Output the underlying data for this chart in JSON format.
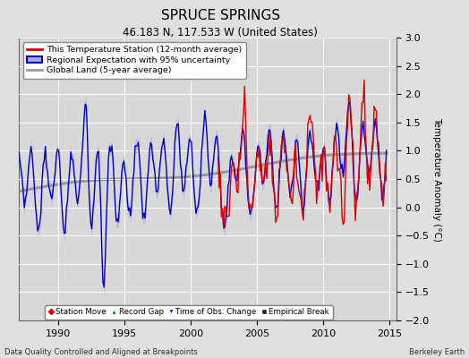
{
  "title": "SPRUCE SPRINGS",
  "subtitle": "46.183 N, 117.533 W (United States)",
  "ylabel": "Temperature Anomaly (°C)",
  "xlabel_left": "Data Quality Controlled and Aligned at Breakpoints",
  "xlabel_right": "Berkeley Earth",
  "xlim": [
    1987.0,
    2015.5
  ],
  "ylim": [
    -2,
    3
  ],
  "yticks": [
    -2,
    -1.5,
    -1,
    -0.5,
    0,
    0.5,
    1,
    1.5,
    2,
    2.5,
    3
  ],
  "xticks": [
    1990,
    1995,
    2000,
    2005,
    2010,
    2015
  ],
  "bg_color": "#e0e0e0",
  "plot_bg_color": "#d8d8d8",
  "grid_color": "#ffffff",
  "red_line_color": "#dd0000",
  "blue_line_color": "#0000cc",
  "blue_fill_color": "#aaaadd",
  "gray_line_color": "#999999",
  "legend1_labels": [
    "This Temperature Station (12-month average)",
    "Regional Expectation with 95% uncertainty",
    "Global Land (5-year average)"
  ],
  "legend2_labels": [
    "Station Move",
    "Record Gap",
    "Time of Obs. Change",
    "Empirical Break"
  ],
  "title_fontsize": 11,
  "subtitle_fontsize": 8.5,
  "tick_fontsize": 8,
  "label_fontsize": 7.5
}
